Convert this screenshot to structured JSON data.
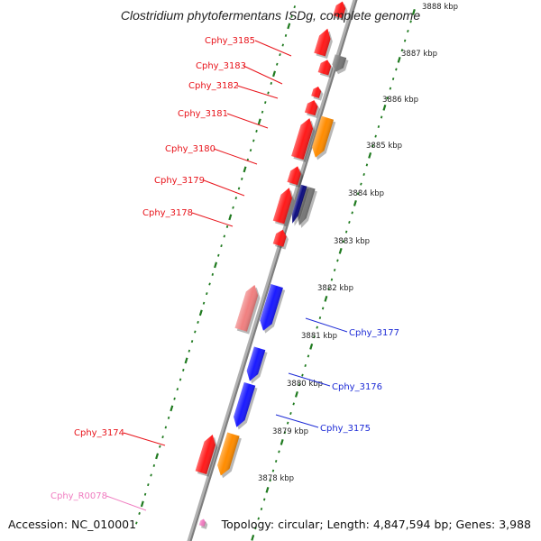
{
  "title": "Clostridium phytofermentans ISDg, complete genome",
  "footer": {
    "accession": "Accession: NC_010001",
    "topology": "Topology: circular; Length: 4,847,594 bp; Genes: 3,988"
  },
  "colors": {
    "backbone": "#9a9a9a",
    "tick_green": "#1f7a1f",
    "label_red": "#e8141b",
    "label_blue": "#1d2bd6",
    "label_pink": "#f07cc0",
    "gene_red": "#ff1a1a",
    "gene_blue": "#1a1aff",
    "gene_orange": "#ff8c00",
    "gene_gray": "#777777",
    "gene_salmon": "#f08080"
  },
  "kbp_labels": [
    "3888 kbp",
    "3887 kbp",
    "3886 kbp",
    "3885 kbp",
    "3884 kbp",
    "3883 kbp",
    "3882 kbp",
    "3881 kbp",
    "3880 kbp",
    "3879 kbp",
    "3878 kbp"
  ],
  "gene_labels": [
    {
      "text": "Cphy_3185",
      "color": "red"
    },
    {
      "text": "Cphy_3183",
      "color": "red"
    },
    {
      "text": "Cphy_3182",
      "color": "red"
    },
    {
      "text": "Cphy_3181",
      "color": "red"
    },
    {
      "text": "Cphy_3180",
      "color": "red"
    },
    {
      "text": "Cphy_3179",
      "color": "red"
    },
    {
      "text": "Cphy_3178",
      "color": "red"
    },
    {
      "text": "Cphy_3177",
      "color": "blue"
    },
    {
      "text": "Cphy_3176",
      "color": "blue"
    },
    {
      "text": "Cphy_3175",
      "color": "blue"
    },
    {
      "text": "Cphy_3174",
      "color": "red"
    },
    {
      "text": "Cphy_R0078",
      "color": "pink"
    }
  ],
  "genes": [
    {
      "name": "cphy-3186",
      "color": "red",
      "strand": "forward"
    },
    {
      "name": "cphy-3185",
      "color": "red",
      "strand": "forward"
    },
    {
      "name": "cphy-3184",
      "color": "gray",
      "strand": "reverse"
    },
    {
      "name": "cphy-3183",
      "color": "red",
      "strand": "forward"
    },
    {
      "name": "cphy-3182a",
      "color": "red",
      "strand": "forward"
    },
    {
      "name": "cphy-3182",
      "color": "red",
      "strand": "forward"
    },
    {
      "name": "cphy-3181-orange",
      "color": "orange",
      "strand": "reverse"
    },
    {
      "name": "cphy-3181",
      "color": "red",
      "strand": "forward"
    },
    {
      "name": "cphy-3180",
      "color": "red",
      "strand": "forward"
    },
    {
      "name": "cphy-3179-gray",
      "color": "gray",
      "strand": "reverse"
    },
    {
      "name": "cphy-3179-blue",
      "color": "navy",
      "strand": "reverse"
    },
    {
      "name": "cphy-3178",
      "color": "red",
      "strand": "forward"
    },
    {
      "name": "cphy-3178a",
      "color": "red",
      "strand": "forward"
    },
    {
      "name": "cphy-3177-blue",
      "color": "blue",
      "strand": "reverse"
    },
    {
      "name": "cphy-3177-salmon",
      "color": "salmon",
      "strand": "forward"
    },
    {
      "name": "cphy-3176",
      "color": "blue",
      "strand": "reverse"
    },
    {
      "name": "cphy-3175",
      "color": "blue",
      "strand": "reverse"
    },
    {
      "name": "cphy-3174-orange",
      "color": "orange",
      "strand": "reverse"
    },
    {
      "name": "cphy-3174",
      "color": "red",
      "strand": "forward"
    },
    {
      "name": "cphy-r0078",
      "color": "pink",
      "strand": "forward"
    }
  ]
}
